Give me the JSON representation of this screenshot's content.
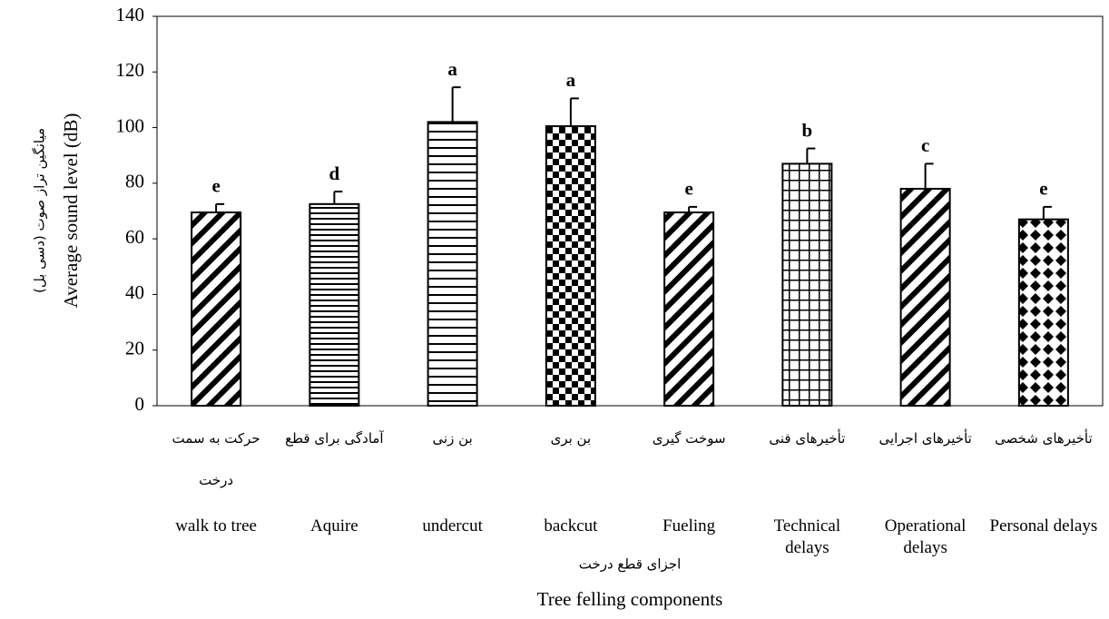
{
  "chart_data": {
    "type": "bar",
    "categories": [
      "walk to tree",
      "Aquire",
      "undercut",
      "backcut",
      "Fueling",
      "Technical delays",
      "Operational delays",
      "Personal delays"
    ],
    "categories_fa": [
      "حرکت به سمت درخت",
      "آمادگی برای قطع",
      "بن زنی",
      "بن بری",
      "سوخت گیری",
      "تأخیرهای فنی",
      "تأخیرهای اجرایی",
      "تأخیرهای شخصی"
    ],
    "values": [
      69.5,
      72.5,
      102,
      100.5,
      69.5,
      87,
      78,
      67
    ],
    "errors": [
      3,
      4.5,
      12.5,
      10,
      2,
      5.5,
      9,
      4.5
    ],
    "significance_letters": [
      "e",
      "d",
      "a",
      "a",
      "e",
      "b",
      "c",
      "e"
    ],
    "patterns": [
      "diagonal",
      "horizontal",
      "horizontal-wide",
      "checker",
      "diagonal",
      "grid",
      "diagonal",
      "diamond"
    ],
    "color": "#000000",
    "ylabel": "Average sound level (dB)",
    "ylabel_fa": "میانگین تراز صوت (دسی بل)",
    "xlabel": "Tree felling components",
    "xlabel_fa": "اجزای قطع درخت",
    "ylim": [
      0,
      140
    ],
    "yticks": [
      0,
      20,
      40,
      60,
      80,
      100,
      120,
      140
    ]
  }
}
